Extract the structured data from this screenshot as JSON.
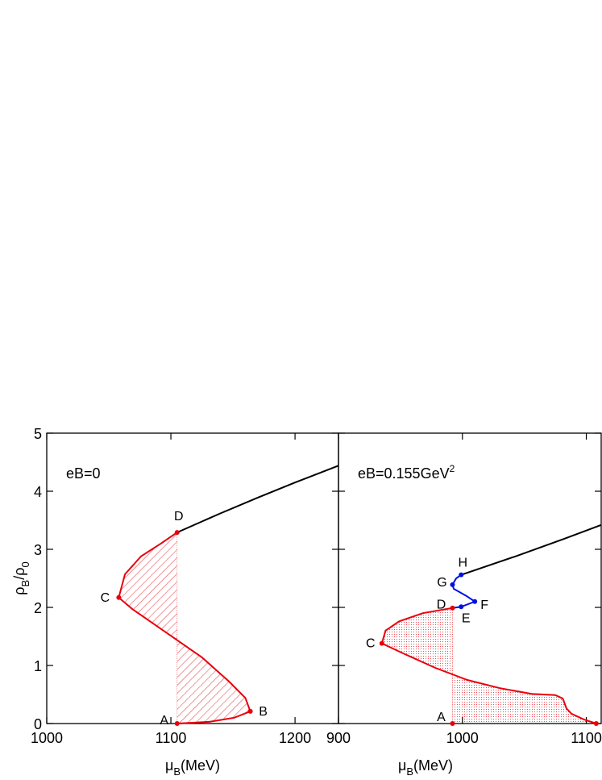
{
  "chart_data": [
    {
      "type": "line",
      "annotation": "eB=0",
      "xlabel": {
        "parts": [
          "μ",
          "B",
          "(MeV)"
        ]
      },
      "ylabel": {
        "parts": [
          "ρ",
          "B",
          "/ρ",
          "0"
        ]
      },
      "xlim": [
        1000,
        1235
      ],
      "ylim": [
        0,
        5
      ],
      "xticks": [
        1000,
        1100,
        1200
      ],
      "yticks": [
        0,
        1,
        2,
        3,
        4,
        5
      ],
      "series": [
        {
          "color": "#e8000b",
          "x": [
            1105,
            1131,
            1151,
            1164,
            1160,
            1147,
            1125,
            1092,
            1069,
            1058,
            1063,
            1076,
            1092,
            1105
          ],
          "values": [
            0,
            0.03,
            0.1,
            0.21,
            0.44,
            0.72,
            1.14,
            1.63,
            1.97,
            2.17,
            2.57,
            2.88,
            3.1,
            3.29
          ]
        },
        {
          "color": "#000000",
          "x": [
            1105,
            1140,
            1170,
            1200,
            1235
          ],
          "values": [
            3.29,
            3.62,
            3.89,
            4.15,
            4.44
          ]
        }
      ],
      "shade": {
        "x": 1105,
        "color": "#e8000b",
        "style": "hatch"
      },
      "points": [
        {
          "name": "A",
          "x": 1105,
          "y": 0,
          "color": "#e8000b"
        },
        {
          "name": "B",
          "x": 1164,
          "y": 0.21,
          "color": "#e8000b"
        },
        {
          "name": "C",
          "x": 1058,
          "y": 2.17,
          "color": "#e8000b"
        },
        {
          "name": "D",
          "x": 1105,
          "y": 3.29,
          "color": "#e8000b"
        }
      ]
    },
    {
      "type": "line",
      "annotation": {
        "text": "eB=0.155GeV",
        "sup": "2"
      },
      "xlabel": {
        "parts": [
          "μ",
          "B",
          "(MeV)"
        ]
      },
      "xlim": [
        900,
        1112
      ],
      "ylim": [
        0,
        5
      ],
      "xticks": [
        900,
        1000,
        1100
      ],
      "yticks": [
        0,
        1,
        2,
        3,
        4,
        5
      ],
      "series": [
        {
          "color": "#e8000b",
          "x": [
            1108,
            1098,
            1088,
            1084,
            1081,
            1075,
            1056,
            1030,
            1004,
            978,
            952,
            935,
            938,
            949,
            968,
            992
          ],
          "values": [
            0,
            0.07,
            0.17,
            0.26,
            0.43,
            0.49,
            0.51,
            0.61,
            0.75,
            0.96,
            1.21,
            1.38,
            1.6,
            1.76,
            1.9,
            1.99
          ]
        },
        {
          "color": "#0010e0",
          "x": [
            992,
            999,
            1010,
            1003,
            993,
            992,
            995,
            999
          ],
          "values": [
            1.99,
            2.01,
            2.1,
            2.2,
            2.32,
            2.39,
            2.5,
            2.56
          ]
        },
        {
          "color": "#000000",
          "x": [
            999,
            1043,
            1082,
            1112
          ],
          "values": [
            2.56,
            2.88,
            3.18,
            3.42
          ]
        }
      ],
      "shade": {
        "x": 992,
        "color": "#e8000b",
        "style": "dots"
      },
      "points": [
        {
          "name": "A",
          "x": 992,
          "y": 0,
          "color": "#e8000b"
        },
        {
          "name": null,
          "x": 1108,
          "y": 0,
          "color": "#e8000b"
        },
        {
          "name": "C",
          "x": 935,
          "y": 1.38,
          "color": "#e8000b"
        },
        {
          "name": "D",
          "x": 992,
          "y": 1.99,
          "color": "#e8000b"
        },
        {
          "name": "E",
          "x": 999,
          "y": 2.01,
          "color": "#0010e0"
        },
        {
          "name": "F",
          "x": 1010,
          "y": 2.1,
          "color": "#0010e0"
        },
        {
          "name": "G",
          "x": 992,
          "y": 2.39,
          "color": "#0010e0"
        },
        {
          "name": "H",
          "x": 999,
          "y": 2.56,
          "color": "#0010e0"
        }
      ]
    }
  ]
}
